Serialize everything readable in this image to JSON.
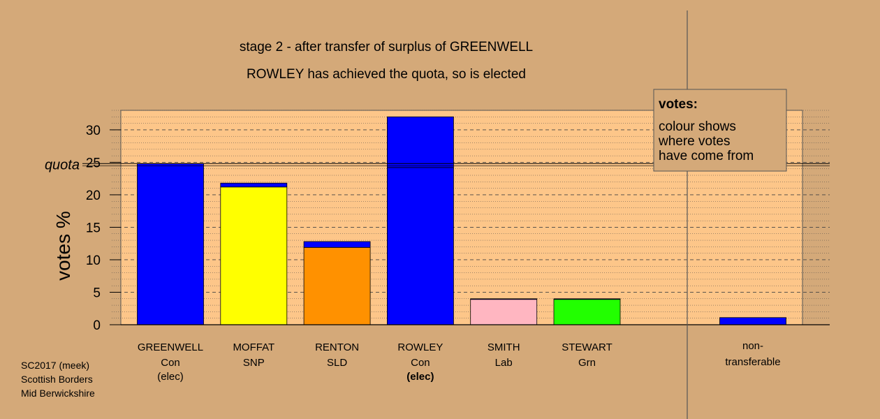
{
  "chart_data": {
    "type": "bar",
    "title": "stage 2 - after transfer of surplus of GREENWELL",
    "subtitle": "ROWLEY has achieved the quota, so is elected",
    "ylabel": "votes %",
    "ylim": [
      0,
      33
    ],
    "yticks": [
      0,
      5,
      10,
      15,
      20,
      25,
      30
    ],
    "quota": 24.8,
    "quota_label": "quota",
    "categories": [
      {
        "name": "GREENWELL",
        "party": "Con",
        "note": "(elec)",
        "note_bold": false
      },
      {
        "name": "MOFFAT",
        "party": "SNP",
        "note": "",
        "note_bold": false
      },
      {
        "name": "RENTON",
        "party": "SLD",
        "note": "",
        "note_bold": false
      },
      {
        "name": "ROWLEY",
        "party": "Con",
        "note": "(elec)",
        "note_bold": true
      },
      {
        "name": "SMITH",
        "party": "Lab",
        "note": "",
        "note_bold": false
      },
      {
        "name": "STEWART",
        "party": "Grn",
        "note": "",
        "note_bold": false
      }
    ],
    "bars": [
      {
        "segments": [
          {
            "value": 24.8,
            "color": "#0000ff"
          }
        ]
      },
      {
        "segments": [
          {
            "value": 21.2,
            "color": "#ffff00"
          },
          {
            "value": 0.6,
            "color": "#0000ff"
          }
        ]
      },
      {
        "segments": [
          {
            "value": 11.9,
            "color": "#ff9100"
          },
          {
            "value": 0.9,
            "color": "#0000ff"
          }
        ]
      },
      {
        "segments": [
          {
            "value": 24.2,
            "color": "#0000ff"
          },
          {
            "value": 7.8,
            "color": "#0000ff"
          }
        ]
      },
      {
        "segments": [
          {
            "value": 3.9,
            "color": "#ffb6c1"
          },
          {
            "value": 0.1,
            "color": "#0000ff"
          }
        ]
      },
      {
        "segments": [
          {
            "value": 3.9,
            "color": "#22ff00"
          },
          {
            "value": 0.1,
            "color": "#0000ff"
          }
        ]
      }
    ],
    "non_transferable": {
      "label_line1": "non-",
      "label_line2": "transferable",
      "value": 1.1,
      "color": "#0000ff"
    },
    "legend": {
      "title": "votes:",
      "lines": [
        "colour shows",
        "where votes",
        "have come from"
      ],
      "position": "top-right"
    },
    "grid": true
  },
  "footer": {
    "lines": [
      "SC2017 (meek)",
      "Scottish Borders",
      "Mid Berwickshire"
    ]
  },
  "colors": {
    "background": "#d4a979",
    "plot_background": "#fdc689"
  }
}
